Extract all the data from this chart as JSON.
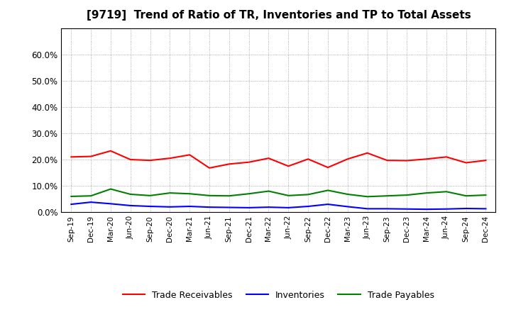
{
  "title": "[9719]  Trend of Ratio of TR, Inventories and TP to Total Assets",
  "x_labels": [
    "Sep-19",
    "Dec-19",
    "Mar-20",
    "Jun-20",
    "Sep-20",
    "Dec-20",
    "Mar-21",
    "Jun-21",
    "Sep-21",
    "Dec-21",
    "Mar-22",
    "Jun-22",
    "Sep-22",
    "Dec-22",
    "Mar-23",
    "Jun-23",
    "Sep-23",
    "Dec-23",
    "Mar-24",
    "Jun-24",
    "Sep-24",
    "Dec-24"
  ],
  "trade_receivables": [
    0.21,
    0.212,
    0.233,
    0.2,
    0.197,
    0.205,
    0.218,
    0.168,
    0.183,
    0.19,
    0.205,
    0.175,
    0.202,
    0.17,
    0.202,
    0.225,
    0.197,
    0.196,
    0.202,
    0.21,
    0.188,
    0.197
  ],
  "inventories": [
    0.03,
    0.038,
    0.032,
    0.025,
    0.022,
    0.02,
    0.022,
    0.019,
    0.018,
    0.017,
    0.019,
    0.017,
    0.022,
    0.03,
    0.021,
    0.013,
    0.013,
    0.012,
    0.011,
    0.012,
    0.014,
    0.013
  ],
  "trade_payables": [
    0.06,
    0.062,
    0.088,
    0.068,
    0.063,
    0.073,
    0.07,
    0.063,
    0.062,
    0.07,
    0.08,
    0.063,
    0.067,
    0.083,
    0.068,
    0.059,
    0.062,
    0.065,
    0.073,
    0.078,
    0.062,
    0.065
  ],
  "tr_color": "#ff0000",
  "inv_color": "#0000ff",
  "tp_color": "#008000",
  "ylim": [
    0.0,
    0.7
  ],
  "yticks": [
    0.0,
    0.1,
    0.2,
    0.3,
    0.4,
    0.5,
    0.6
  ],
  "bg_color": "#ffffff",
  "grid_color": "#999999",
  "line_width": 1.5
}
